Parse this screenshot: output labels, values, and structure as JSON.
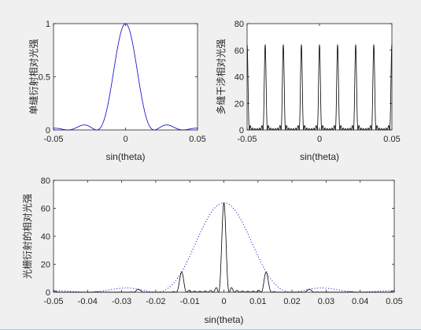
{
  "chart_data": [
    {
      "type": "line",
      "ylabel": "单缝衍射相对光强",
      "xlabel": "sin(theta)",
      "xlim": [
        -0.05,
        0.05
      ],
      "ylim": [
        0,
        1
      ],
      "xticks": [
        -0.05,
        0,
        0.05
      ],
      "xtick_labels": [
        "-0.05",
        "0",
        "0.05"
      ],
      "yticks": [
        0,
        0.5,
        1
      ],
      "ytick_labels": [
        "0",
        "0.5",
        "1"
      ],
      "grid": false,
      "series": [
        {
          "kind": "single_slit_sinc2",
          "color": "#0000cc",
          "style": "solid",
          "first_zero": 0.02,
          "peak": 1,
          "secondary_max": 0.047
        }
      ]
    },
    {
      "type": "line",
      "ylabel": "多缝干涉相对光强",
      "xlabel": "sin(theta)",
      "xlim": [
        -0.05,
        0.05
      ],
      "ylim": [
        0,
        80
      ],
      "xticks": [
        -0.05,
        0,
        0.05
      ],
      "xtick_labels": [
        "-0.05",
        "0",
        "0.05"
      ],
      "yticks": [
        0,
        20,
        40,
        60,
        80
      ],
      "ytick_labels": [
        "0",
        "20",
        "40",
        "60",
        "80"
      ],
      "grid": false,
      "series": [
        {
          "kind": "multi_slit_interference",
          "color": "#000000",
          "style": "solid",
          "slits": 8,
          "peak": 64,
          "principal_maxima": [
            -0.0375,
            -0.025,
            -0.0125,
            0,
            0.0125,
            0.025,
            0.0375
          ]
        }
      ]
    },
    {
      "type": "line",
      "ylabel": "光栅衍射的相对光强",
      "xlabel": "sin(theta)",
      "xlim": [
        -0.05,
        0.05
      ],
      "ylim": [
        0,
        80
      ],
      "xticks": [
        -0.05,
        -0.04,
        -0.03,
        -0.02,
        -0.01,
        0,
        0.01,
        0.02,
        0.03,
        0.04,
        0.05
      ],
      "xtick_labels": [
        "-0.05",
        "-0.04",
        "-0.03",
        "-0.02",
        "-0.01",
        "0",
        "0.01",
        "0.02",
        "0.03",
        "0.04",
        "0.05"
      ],
      "yticks": [
        0,
        20,
        40,
        60,
        80
      ],
      "ytick_labels": [
        "0",
        "20",
        "40",
        "60",
        "80"
      ],
      "grid": false,
      "series": [
        {
          "kind": "grating_total",
          "color": "#000000",
          "style": "solid",
          "slits": 8,
          "peak": 64,
          "principal_maxima": [
            -0.0375,
            -0.025,
            -0.0125,
            0,
            0.0125,
            0.025,
            0.0375
          ],
          "first_order_peak": 14
        },
        {
          "kind": "single_slit_envelope",
          "color": "#0000cc",
          "style": "dotted",
          "peak": 64,
          "first_zero": 0.02
        }
      ]
    }
  ]
}
